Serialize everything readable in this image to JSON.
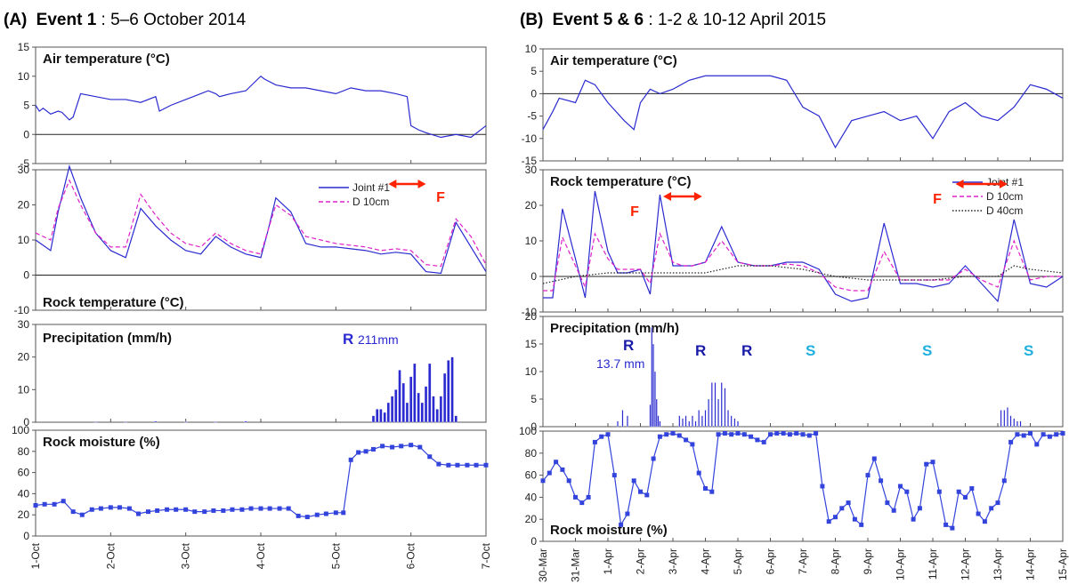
{
  "colors": {
    "blue": "#2a2ad0",
    "dark_blue": "#1a1aa8",
    "magenta": "#e020c8",
    "black": "#222222",
    "red": "#ff2200",
    "cyan": "#1fb0e0",
    "marker": "#3344dd"
  },
  "panel_a": {
    "label": "(A)",
    "event": "Event 1",
    "dates": ": 5–6 October 2014",
    "x_ticks": [
      "1-Oct",
      "2-Oct",
      "3-Oct",
      "4-Oct",
      "5-Oct",
      "6-Oct",
      "7-Oct"
    ]
  },
  "panel_b": {
    "label": "(B)",
    "event": "Event 5 & 6",
    "dates": ": 1-2 & 10-12 April 2015",
    "x_ticks": [
      "30-Mar",
      "31-Mar",
      "1-Apr",
      "2-Apr",
      "3-Apr",
      "4-Apr",
      "5-Apr",
      "6-Apr",
      "7-Apr",
      "8-Apr",
      "9-Apr",
      "10-Apr",
      "11-Apr",
      "12-Apr",
      "13-Apr",
      "14-Apr",
      "15-Apr"
    ]
  },
  "chart_data": [
    {
      "id": "A-air",
      "type": "line",
      "title": "Air temperature (°C)",
      "x_range": [
        0,
        6
      ],
      "ylim": [
        -5,
        15
      ],
      "y_ticks": [
        -5,
        0,
        5,
        10,
        15
      ],
      "series": [
        {
          "color": "blue",
          "x": [
            0,
            0.05,
            0.1,
            0.2,
            0.3,
            0.35,
            0.45,
            0.5,
            0.6,
            0.8,
            1,
            1.2,
            1.4,
            1.6,
            1.65,
            1.8,
            2,
            2.1,
            2.3,
            2.4,
            2.45,
            2.6,
            2.8,
            3,
            3.05,
            3.2,
            3.4,
            3.6,
            3.8,
            4,
            4.2,
            4.4,
            4.6,
            4.8,
            4.95,
            5,
            5.1,
            5.2,
            5.4,
            5.6,
            5.8,
            6
          ],
          "y": [
            5,
            4,
            4.5,
            3.5,
            4,
            3.8,
            2.5,
            3,
            7,
            6.5,
            6,
            6,
            5.5,
            6.5,
            4,
            5,
            6,
            6.5,
            7.5,
            7,
            6.5,
            7,
            7.5,
            10,
            9.5,
            8.5,
            8,
            8,
            7.5,
            7,
            8,
            7.5,
            7.5,
            7,
            6.5,
            1.5,
            0.8,
            0.3,
            -0.5,
            0,
            -0.5,
            1.5
          ]
        }
      ]
    },
    {
      "id": "A-rock",
      "type": "line",
      "title": "Rock temperature (°C)",
      "x_range": [
        0,
        6
      ],
      "ylim": [
        -10,
        30
      ],
      "y_ticks": [
        -10,
        0,
        10,
        20,
        30
      ],
      "annotations": [
        {
          "text": "F",
          "kind": "arrow",
          "x0": 4.7,
          "x1": 5.2
        }
      ],
      "series": [
        {
          "name": "Joint #1",
          "color": "blue",
          "dash": "",
          "x": [
            0,
            0.2,
            0.3,
            0.45,
            0.6,
            0.8,
            1,
            1.2,
            1.4,
            1.6,
            1.8,
            2,
            2.2,
            2.4,
            2.6,
            2.8,
            3,
            3.1,
            3.2,
            3.4,
            3.6,
            3.8,
            4,
            4.2,
            4.4,
            4.6,
            4.8,
            5,
            5.2,
            5.4,
            5.6,
            5.8,
            6
          ],
          "y": [
            10,
            7,
            18,
            31,
            22,
            12,
            7,
            5,
            19,
            14,
            10,
            7,
            6,
            11,
            8,
            6,
            5,
            13,
            22,
            18,
            9,
            8,
            8,
            7.5,
            7,
            6,
            6.5,
            6,
            1,
            0.5,
            15,
            8,
            1
          ]
        },
        {
          "name": "D 10cm",
          "color": "magenta",
          "dash": "5,3",
          "x": [
            0,
            0.2,
            0.3,
            0.45,
            0.6,
            0.8,
            1,
            1.2,
            1.4,
            1.6,
            1.8,
            2,
            2.2,
            2.4,
            2.6,
            2.8,
            3,
            3.1,
            3.2,
            3.4,
            3.6,
            3.8,
            4,
            4.2,
            4.4,
            4.6,
            4.8,
            5,
            5.2,
            5.4,
            5.6,
            5.8,
            6
          ],
          "y": [
            12,
            10,
            19,
            27,
            20,
            12,
            8,
            8,
            23,
            17,
            12,
            9,
            8,
            12,
            9,
            7,
            6,
            13,
            20,
            17,
            11,
            10,
            9,
            8.5,
            8,
            7,
            7.5,
            7,
            3,
            2.5,
            16,
            11,
            3
          ]
        }
      ]
    },
    {
      "id": "A-precip",
      "type": "bar",
      "title": "Precipitation (mm/h)",
      "x_range": [
        0,
        6
      ],
      "ylim": [
        0,
        30
      ],
      "y_ticks": [
        0,
        10,
        20,
        30
      ],
      "annotations": [
        {
          "text": "R",
          "sub": "211mm",
          "kind": "label"
        }
      ],
      "x": [
        0.8,
        1.2,
        1.6,
        2,
        2.4,
        2.8,
        4.5,
        4.55,
        4.6,
        4.65,
        4.7,
        4.75,
        4.8,
        4.85,
        4.9,
        4.95,
        5,
        5.05,
        5.1,
        5.15,
        5.2,
        5.25,
        5.3,
        5.35,
        5.4,
        5.45,
        5.5,
        5.55,
        5.6
      ],
      "values": [
        0.2,
        0.2,
        0.3,
        0.2,
        0.2,
        0.3,
        2,
        4,
        4,
        3,
        6,
        8,
        10,
        16,
        12,
        6,
        14,
        18,
        9,
        6,
        11,
        18,
        8,
        4,
        8,
        15,
        19,
        20,
        2
      ]
    },
    {
      "id": "A-moisture",
      "type": "line",
      "title": "Rock moisture (%)",
      "x_range": [
        0,
        6
      ],
      "ylim": [
        0,
        100
      ],
      "y_ticks": [
        0,
        20,
        40,
        60,
        80,
        100
      ],
      "series": [
        {
          "color": "marker",
          "x": [
            0,
            0.12,
            0.25,
            0.37,
            0.5,
            0.62,
            0.75,
            0.87,
            1,
            1.12,
            1.25,
            1.37,
            1.5,
            1.62,
            1.75,
            1.87,
            2,
            2.12,
            2.25,
            2.37,
            2.5,
            2.62,
            2.75,
            2.87,
            3,
            3.12,
            3.25,
            3.37,
            3.5,
            3.62,
            3.75,
            3.87,
            4,
            4.1,
            4.2,
            4.3,
            4.4,
            4.5,
            4.62,
            4.75,
            4.87,
            5,
            5.12,
            5.25,
            5.37,
            5.5,
            5.62,
            5.75,
            5.87,
            6
          ],
          "y": [
            29,
            30,
            30,
            33,
            23,
            20,
            25,
            26,
            27,
            27,
            26,
            21,
            23,
            24,
            25,
            25,
            25,
            23,
            23,
            24,
            24,
            25,
            25,
            26,
            26,
            26,
            26,
            26,
            19,
            18,
            20,
            21,
            22,
            22,
            72,
            79,
            80,
            82,
            85,
            84,
            85,
            86,
            84,
            75,
            68,
            67,
            67,
            67,
            67,
            67
          ]
        }
      ]
    },
    {
      "id": "B-air",
      "type": "line",
      "title": "Air temperature (°C)",
      "x_range": [
        0,
        16
      ],
      "ylim": [
        -15,
        10
      ],
      "y_ticks": [
        -15,
        -10,
        -5,
        0,
        5,
        10
      ],
      "series": [
        {
          "color": "blue",
          "x": [
            0,
            0.3,
            0.5,
            1,
            1.3,
            1.6,
            2,
            2.5,
            2.8,
            3,
            3.3,
            3.6,
            4,
            4.5,
            5,
            6,
            7,
            7.5,
            8,
            8.5,
            9,
            9.5,
            10,
            10.5,
            11,
            11.5,
            12,
            12.5,
            13,
            13.5,
            14,
            14.5,
            15,
            15.5,
            16
          ],
          "y": [
            -8,
            -4,
            -1,
            -2,
            3,
            2,
            -2,
            -6,
            -8,
            -2,
            1,
            0,
            1,
            3,
            4,
            4,
            4,
            3,
            -3,
            -5,
            -12,
            -6,
            -5,
            -4,
            -6,
            -5,
            -10,
            -4,
            -2,
            -5,
            -6,
            -3,
            2,
            1,
            -1
          ]
        }
      ]
    },
    {
      "id": "B-rock",
      "type": "line",
      "title": "Rock temperature (°C)",
      "x_range": [
        0,
        16
      ],
      "ylim": [
        -10,
        30
      ],
      "y_ticks": [
        -10,
        0,
        10,
        20,
        30
      ],
      "annotations": [
        {
          "text": "F",
          "kind": "arrow",
          "x0": 3.7,
          "x1": 4.9
        },
        {
          "text": "F",
          "kind": "arrow",
          "x0": 12.7,
          "x1": 14.3
        }
      ],
      "series": [
        {
          "name": "Joint #1",
          "color": "blue",
          "dash": "",
          "x": [
            0,
            0.3,
            0.6,
            1,
            1.3,
            1.6,
            2,
            2.3,
            2.6,
            3,
            3.3,
            3.6,
            4,
            4.3,
            4.6,
            5,
            5.5,
            6,
            6.5,
            7,
            7.5,
            8,
            8.5,
            9,
            9.5,
            10,
            10.5,
            11,
            11.5,
            12,
            12.5,
            13,
            13.5,
            14,
            14.5,
            15,
            15.5,
            16
          ],
          "y": [
            -6,
            -6,
            19,
            5,
            -6,
            24,
            7,
            1,
            1,
            2,
            -5,
            23,
            3,
            3,
            3,
            4,
            14,
            4,
            3,
            3,
            4,
            4,
            2,
            -5,
            -7,
            -6,
            15,
            -2,
            -2,
            -3,
            -2,
            3,
            -2,
            -7,
            16,
            -2,
            -3,
            0
          ]
        },
        {
          "name": "D 10cm",
          "color": "magenta",
          "dash": "5,3",
          "x": [
            0,
            0.3,
            0.6,
            1,
            1.3,
            1.6,
            2,
            2.3,
            2.6,
            3,
            3.3,
            3.6,
            4,
            4.3,
            4.6,
            5,
            5.5,
            6,
            6.5,
            7,
            7.5,
            8,
            8.5,
            9,
            9.5,
            10,
            10.5,
            11,
            11.5,
            12,
            12.5,
            13,
            13.5,
            14,
            14.5,
            15,
            15.5,
            16
          ],
          "y": [
            -4,
            -4,
            11,
            3,
            -3,
            12,
            5,
            2,
            2,
            2,
            -2,
            12,
            4,
            3,
            3,
            4,
            10,
            4,
            3,
            3,
            3.5,
            3,
            1,
            -3,
            -4,
            -4,
            7,
            -1,
            -1,
            -1,
            -1,
            2,
            -1,
            -3,
            10,
            -1,
            0,
            0
          ]
        },
        {
          "name": "D 40cm",
          "color": "black",
          "dash": "1.5,2",
          "x": [
            0,
            1,
            2,
            3,
            4,
            5,
            5.5,
            6,
            7,
            8,
            9,
            10,
            11,
            12,
            13,
            14,
            14.5,
            15,
            16
          ],
          "y": [
            -2,
            0,
            1,
            1,
            1,
            1,
            2,
            3,
            3,
            2,
            0,
            -1,
            -1,
            -1,
            0,
            0,
            3,
            2,
            1
          ]
        }
      ]
    },
    {
      "id": "B-precip",
      "type": "bar",
      "title": "Precipitation (mm/h)",
      "x_range": [
        0,
        16
      ],
      "ylim": [
        0,
        20
      ],
      "y_ticks": [
        0,
        5,
        10,
        15,
        20
      ],
      "annotations": [
        {
          "text": "R",
          "sub": "13.7 mm",
          "kind": "label",
          "color": "dark_blue"
        },
        {
          "text": "R",
          "kind": "label",
          "color": "dark_blue"
        },
        {
          "text": "R",
          "kind": "label",
          "color": "dark_blue"
        },
        {
          "text": "S",
          "kind": "label",
          "color": "cyan"
        },
        {
          "text": "S",
          "kind": "label",
          "color": "cyan"
        },
        {
          "text": "S",
          "kind": "label",
          "color": "cyan"
        }
      ],
      "x": [
        2.3,
        2.45,
        2.6,
        3.3,
        3.35,
        3.4,
        3.45,
        3.5,
        3.55,
        3.6,
        4.2,
        4.3,
        4.4,
        4.5,
        4.6,
        4.7,
        4.8,
        4.9,
        5,
        5.1,
        5.2,
        5.3,
        5.4,
        5.5,
        5.6,
        5.7,
        5.8,
        5.9,
        6,
        14.1,
        14.2,
        14.3,
        14.4,
        14.5,
        14.6,
        14.7
      ],
      "values": [
        1,
        3,
        2,
        4,
        18,
        15,
        10,
        5,
        2,
        1,
        2,
        1.5,
        2,
        1,
        2,
        1,
        3,
        2,
        3,
        5,
        8,
        8,
        5,
        8,
        7,
        3,
        2,
        1.5,
        1,
        3,
        3,
        3.5,
        2,
        1.5,
        1,
        1
      ]
    },
    {
      "id": "B-moisture",
      "type": "line",
      "title": "Rock moisture (%)",
      "x_range": [
        0,
        16
      ],
      "ylim": [
        0,
        100
      ],
      "y_ticks": [
        0,
        20,
        40,
        60,
        80,
        100
      ],
      "series": [
        {
          "color": "marker",
          "x": [
            0,
            0.2,
            0.4,
            0.6,
            0.8,
            1,
            1.2,
            1.4,
            1.6,
            1.8,
            2,
            2.2,
            2.4,
            2.6,
            2.8,
            3,
            3.2,
            3.4,
            3.6,
            3.8,
            4,
            4.2,
            4.4,
            4.6,
            4.8,
            5,
            5.2,
            5.4,
            5.6,
            5.8,
            6,
            6.2,
            6.4,
            6.6,
            6.8,
            7,
            7.2,
            7.4,
            7.6,
            7.8,
            8,
            8.2,
            8.4,
            8.6,
            8.8,
            9,
            9.2,
            9.4,
            9.6,
            9.8,
            10,
            10.2,
            10.4,
            10.6,
            10.8,
            11,
            11.2,
            11.4,
            11.6,
            11.8,
            12,
            12.2,
            12.4,
            12.6,
            12.8,
            13,
            13.2,
            13.4,
            13.6,
            13.8,
            14,
            14.2,
            14.4,
            14.6,
            14.8,
            15,
            15.2,
            15.4,
            15.6,
            15.8,
            16
          ],
          "y": [
            55,
            62,
            72,
            65,
            55,
            40,
            35,
            40,
            90,
            95,
            97,
            60,
            15,
            25,
            55,
            45,
            42,
            75,
            95,
            97,
            98,
            96,
            92,
            88,
            62,
            48,
            45,
            97,
            98,
            97,
            98,
            97,
            95,
            92,
            90,
            97,
            98,
            98,
            97,
            98,
            97,
            96,
            98,
            50,
            18,
            22,
            30,
            35,
            20,
            15,
            60,
            75,
            55,
            35,
            28,
            50,
            45,
            20,
            30,
            70,
            72,
            45,
            15,
            12,
            45,
            40,
            48,
            25,
            18,
            30,
            35,
            55,
            90,
            97,
            96,
            98,
            88,
            97,
            95,
            97,
            98
          ]
        }
      ]
    }
  ]
}
